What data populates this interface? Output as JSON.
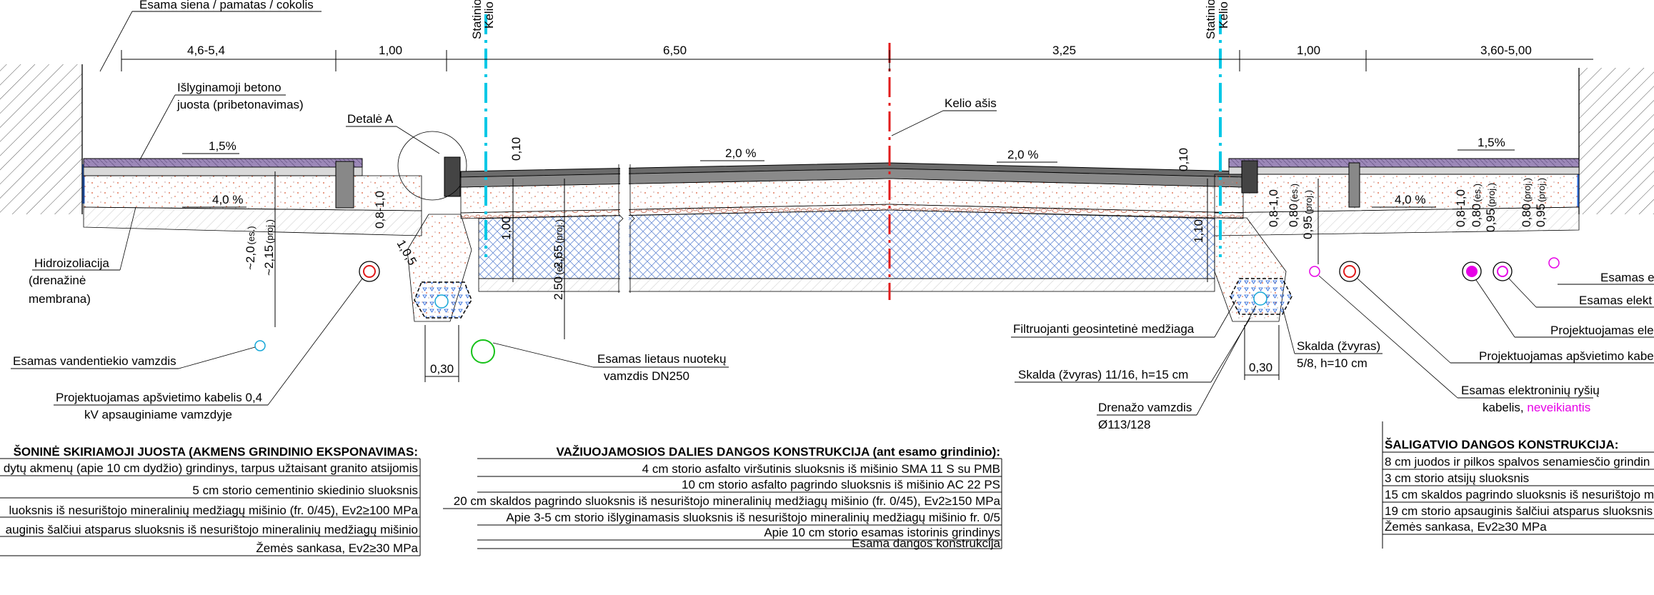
{
  "colors": {
    "axis_red": "#e21b1b",
    "fixation_cyan": "#00c8e6",
    "pipe_red": "#e21b1b",
    "water_cyan": "#16a7d8",
    "storm_green": "#17c21a",
    "light_magenta": "#e600e6",
    "gravel_blue": "#2f6fe0",
    "asphalt": "#6b6b6b",
    "paving_purple": "#8e7aa8",
    "sand_red": "#d9532d"
  },
  "dimensions": {
    "top_left_1": "4,6-5,4",
    "top_left_2": "1,00",
    "top_mid_left": "6,50",
    "top_mid_right": "3,25",
    "top_right_1": "1,00",
    "top_right_2": "3,60-5,00",
    "v_010_left": "0,10",
    "v_010_right": "0,10",
    "v_08_10_left": "0,8-1,0",
    "v_08_10_right": "0,8-1,0",
    "v_10_05": "1,0,5",
    "v_20": "~2,0",
    "v_20_sub": "(es.)",
    "v_215": "~2,15",
    "v_215_sub": "(proj.)",
    "v_100": "1,00",
    "v_265": "2,65",
    "v_265_sub": "(proj.)",
    "v_250": "2,50",
    "v_250_sub": "(es.)",
    "v_110": "1,10",
    "v_080_a": "0,80",
    "v_080_a_sub": "(es.)",
    "v_095_a": "0,95",
    "v_095_a_sub": "(proj.)",
    "v_08_10_r2": "0,8-1,0",
    "v_080_b": "0,80",
    "v_080_b_sub": "(es.)",
    "v_095_b": "0,95",
    "v_095_b_sub": "(proj.)",
    "v_080_c": "0,80",
    "v_080_c_sub": "(proj.)",
    "v_095_c": "0,95",
    "v_095_c_sub": "(proj.)",
    "bottom_030_left": "0,30",
    "bottom_030_right": "0,30"
  },
  "slopes": {
    "left_top": "1,5%",
    "left_bottom": "4,0 %",
    "road_left": "2,0 %",
    "road_right": "2,0 %",
    "right_top": "1,5%",
    "right_bottom": "4,0 %"
  },
  "labels": {
    "wall": "Esama siena / pamatas / cokolis",
    "leveling_strip_1": "Išlyginamoji betono",
    "leveling_strip_2": "juosta (pribetonavimas)",
    "detail_a": "Detalė A",
    "road_axis": "Kelio ašis",
    "fixation_left_1": "Statinio",
    "fixation_left_2": "Kelio j",
    "fixation_right_1": "Statinio",
    "fixation_right_2": "Kelio j",
    "waterproofing_1": "Hidroizoliacija",
    "waterproofing_2": "(drenažinė",
    "waterproofing_3": "membrana)",
    "water_pipe": "Esamas vandentiekio vamzdis",
    "light_cable_left_1": "Projektuojamas apšvietimo kabelis 0,4",
    "light_cable_left_2": "kV apsauginiame vamzdyje",
    "storm_pipe_1": "Esamas lietaus nuotekų",
    "storm_pipe_2": "vamzdis DN250",
    "geotextile": "Filtruojanti geosintetinė medžiaga",
    "gravel_fill": "Skalda (žvyras) 11/16, h=15 cm",
    "gravel_drain_1": "Skalda (žvyras)",
    "gravel_drain_2": "5/8, h=10 cm",
    "drain_pipe_1": "Drenažo vamzdis",
    "drain_pipe_2": "Ø113/128",
    "right_1": "Esamas e",
    "right_2": "Esamas elekt",
    "right_3": "Projektuojamas elek",
    "right_4": "Projektuojamas apšvietimo kabe",
    "telecom_1": "Esamas elektroninių ryšių",
    "telecom_2a": "kabelis, ",
    "telecom_2b": "neveikiantis"
  },
  "tables": {
    "left": {
      "title": "ŠONINĖ SKIRIAMOJI JUOSTA (AKMENS GRINDINIO EKSPONAVIMAS:",
      "rows": [
        "dytų akmenų (apie 10 cm dydžio) grindinys, tarpus užtaisant granito atsijomis",
        "5 cm storio cementinio skiedinio sluoksnis",
        "luoksnis iš nesurištojo mineralinių medžiagų mišinio (fr. 0/45), Ev2≥100 MPa",
        "auginis šalčiui atsparus sluoksnis iš nesurištojo mineralinių medžiagų mišinio",
        "Žemės sankasa,  Ev2≥30 MPa"
      ]
    },
    "middle": {
      "title": "VAŽIUOJAMOSIOS DALIES DANGOS KONSTRUKCIJA (ant esamo grindinio):",
      "rows": [
        "4 cm storio asfalto viršutinis sluoksnis iš mišinio SMA 11 S su PMB",
        "10 cm storio asfalto pagrindo sluoksnis iš mišinio AC 22 PS",
        "20 cm skaldos pagrindo sluoksnis iš nesurištojo mineralinių medžiagų mišinio (fr. 0/45), Ev2≥150 MPa",
        "Apie 3-5 cm storio išlyginamasis sluoksnis iš nesurištojo mineralinių medžiagų mišinio fr. 0/5",
        "Apie 10 cm storio esamas istorinis grindinys",
        "Esama dangos konstrukcija"
      ]
    },
    "right": {
      "title": "ŠALIGATVIO DANGOS KONSTRUKCIJA:",
      "rows": [
        "8 cm juodos ir pilkos spalvos senamiesčio grindin",
        "3 cm storio atsijų sluoksnis",
        "15 cm skaldos pagrindo sluoksnis iš nesurištojo m",
        "19 cm storio apsauginis šalčiui atsparus sluoksnis",
        "Žemės sankasa,  Ev2≥30 MPa"
      ]
    }
  }
}
